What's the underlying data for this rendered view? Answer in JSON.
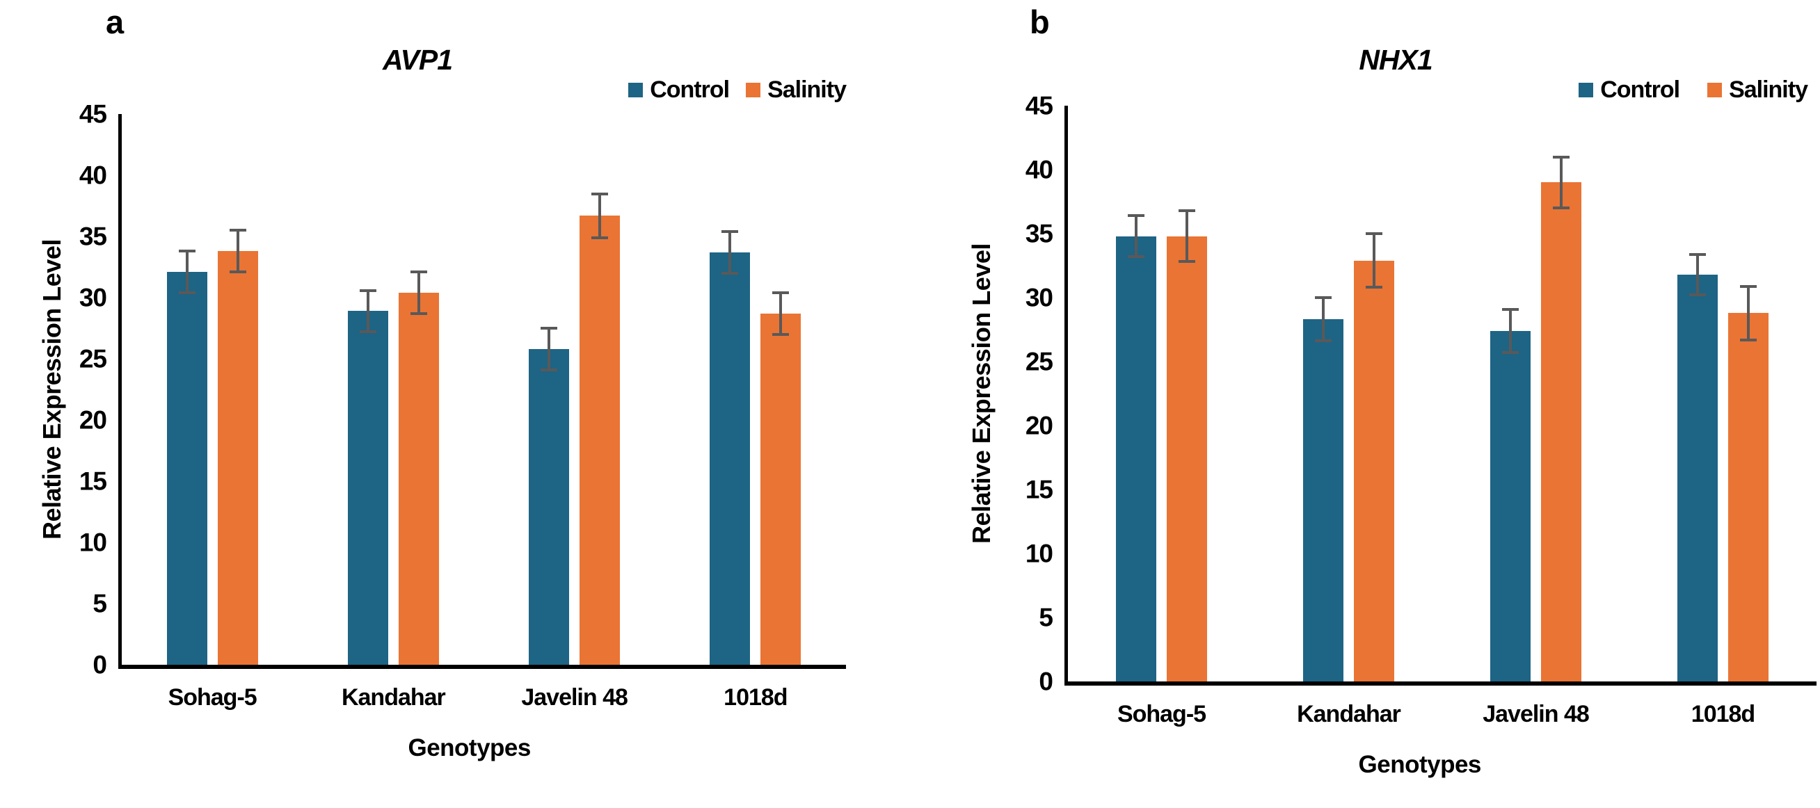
{
  "figure_type": "grouped-bar-chart-figure",
  "colors": {
    "control": "#1E6485",
    "salinity": "#EA7434",
    "error_bar": "#595959",
    "axis": "#000000",
    "background": "#ffffff"
  },
  "chart_data": [
    {
      "type": "bar",
      "panel_letter": "a",
      "title": "AVP1",
      "xlabel": "Genotypes",
      "ylabel": "Relative Expression Level",
      "ylim": [
        0,
        45
      ],
      "yticks": [
        0,
        5,
        10,
        15,
        20,
        25,
        30,
        35,
        40,
        45
      ],
      "grid": false,
      "legend_position": "top-right",
      "legend_labels": [
        "Control",
        "Salinity"
      ],
      "categories": [
        "Sohag-5",
        "Kandahar",
        "Javelin 48",
        "1018d"
      ],
      "series": [
        {
          "name": "Control",
          "color": "#1E6485",
          "values": [
            32.1,
            28.9,
            25.8,
            33.7
          ],
          "errors": [
            1.8,
            1.8,
            1.8,
            1.8
          ]
        },
        {
          "name": "Salinity",
          "color": "#EA7434",
          "values": [
            33.8,
            30.4,
            36.7,
            28.7
          ],
          "errors": [
            1.8,
            1.8,
            1.9,
            1.8
          ]
        }
      ]
    },
    {
      "type": "bar",
      "panel_letter": "b",
      "title": "NHX1",
      "xlabel": "Genotypes",
      "ylabel": "Relative Expression Level",
      "ylim": [
        0,
        45
      ],
      "yticks": [
        0,
        5,
        10,
        15,
        20,
        25,
        30,
        35,
        40,
        45
      ],
      "grid": false,
      "legend_position": "top-right",
      "legend_labels": [
        "Control",
        "Salinity"
      ],
      "categories": [
        "Sohag-5",
        "Kandahar",
        "Javelin 48",
        "1018d"
      ],
      "series": [
        {
          "name": "Control",
          "color": "#1E6485",
          "values": [
            34.8,
            28.3,
            27.4,
            31.8
          ],
          "errors": [
            1.7,
            1.8,
            1.8,
            1.7
          ]
        },
        {
          "name": "Salinity",
          "color": "#EA7434",
          "values": [
            34.8,
            32.9,
            39.0,
            28.8
          ],
          "errors": [
            2.1,
            2.2,
            2.1,
            2.2
          ]
        }
      ]
    }
  ]
}
